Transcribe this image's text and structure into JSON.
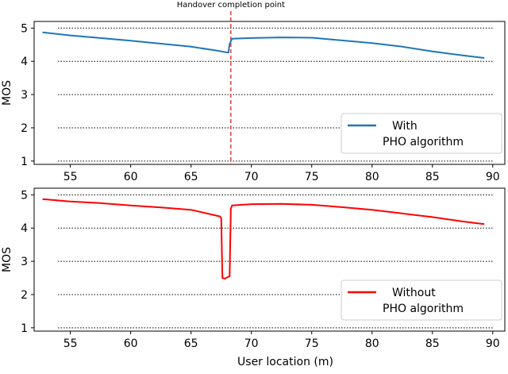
{
  "chart_data": [
    {
      "type": "line",
      "panel": "top",
      "xlabel": "",
      "ylabel": "MOS",
      "xlim": [
        52,
        91
      ],
      "ylim": [
        0.9,
        5.2
      ],
      "xticks": [
        55,
        60,
        65,
        70,
        75,
        80,
        85,
        90
      ],
      "yticks": [
        1,
        2,
        3,
        4,
        5
      ],
      "grid": "horizontal dotted",
      "legend_position": "lower-right",
      "annotation": {
        "label": "Handover completion point",
        "x": 68.3,
        "style": "dashed vertical line",
        "color": "#d62728"
      },
      "series": [
        {
          "name": "With\nPHO algorithm",
          "legend_lines": [
            "With",
            "PHO algorithm"
          ],
          "color": "#1f77b4",
          "x": [
            52.7,
            55,
            57.5,
            60,
            62.5,
            65,
            67,
            68.1,
            68.2,
            68.3,
            68.4,
            70,
            72.5,
            75,
            77.5,
            80,
            82.5,
            85,
            87.5,
            89.3
          ],
          "y": [
            4.87,
            4.78,
            4.7,
            4.62,
            4.53,
            4.44,
            4.33,
            4.26,
            4.52,
            4.6,
            4.68,
            4.7,
            4.72,
            4.71,
            4.63,
            4.55,
            4.44,
            4.3,
            4.18,
            4.1
          ]
        }
      ]
    },
    {
      "type": "line",
      "panel": "bottom",
      "xlabel": "User location (m)",
      "ylabel": "MOS",
      "xlim": [
        52,
        91
      ],
      "ylim": [
        0.9,
        5.2
      ],
      "xticks": [
        55,
        60,
        65,
        70,
        75,
        80,
        85,
        90
      ],
      "yticks": [
        1,
        2,
        3,
        4,
        5
      ],
      "grid": "horizontal dotted",
      "legend_position": "lower-right",
      "series": [
        {
          "name": "Without\nPHO algorithm",
          "legend_lines": [
            "Without",
            "PHO algorithm"
          ],
          "color": "#ff0000",
          "x": [
            52.7,
            55,
            57.5,
            60,
            62.5,
            65,
            67.4,
            67.5,
            67.6,
            67.8,
            68.2,
            68.3,
            68.4,
            70,
            72.5,
            75,
            77.5,
            80,
            82.5,
            85,
            87.5,
            89.3
          ],
          "y": [
            4.87,
            4.8,
            4.75,
            4.68,
            4.62,
            4.55,
            4.35,
            4.3,
            2.5,
            2.48,
            2.55,
            4.58,
            4.68,
            4.72,
            4.73,
            4.7,
            4.63,
            4.55,
            4.44,
            4.33,
            4.2,
            4.12
          ]
        }
      ]
    }
  ]
}
